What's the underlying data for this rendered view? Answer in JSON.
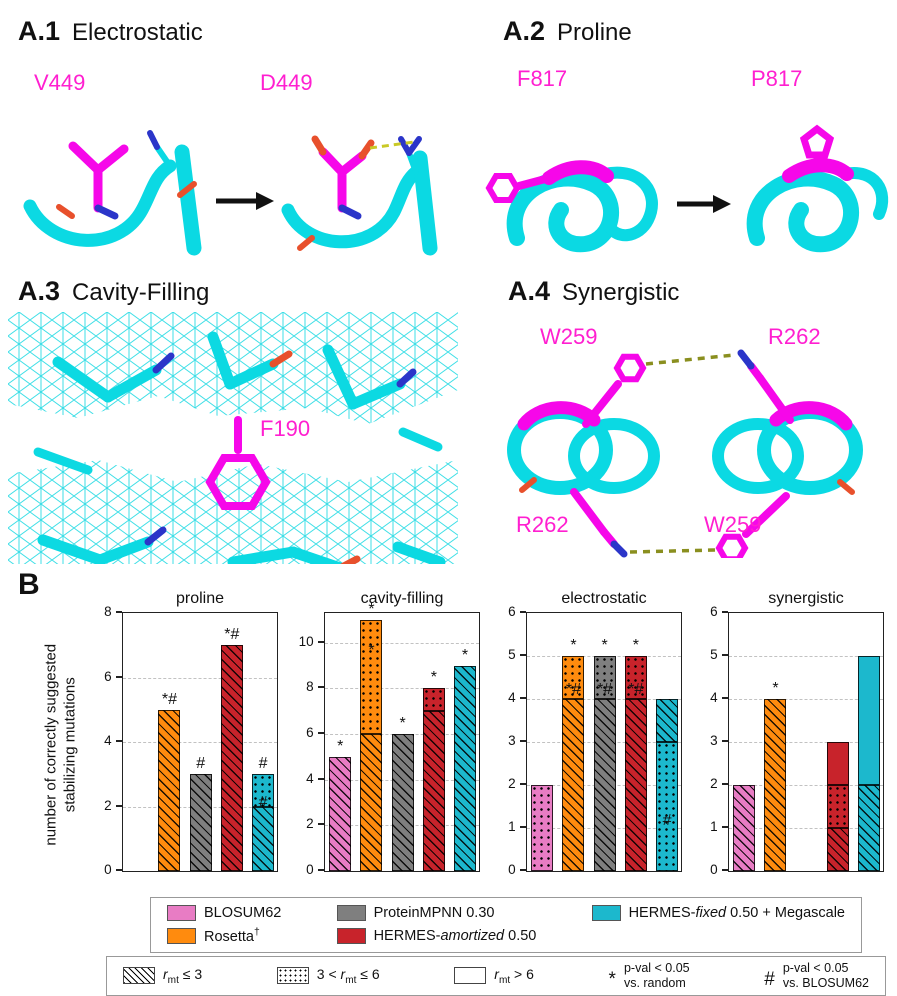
{
  "colors": {
    "blosum62": "#e87cc4",
    "rosetta": "#ff8b0e",
    "proteinmpnn": "#7f7f7f",
    "hermes_amortized": "#c8232b",
    "hermes_fixed": "#1cb8cd",
    "structure_cyan": "#0bd9e3",
    "structure_magenta": "#f607e9",
    "residue_label_magenta": "#ff1fd0",
    "nitrogen_blue": "#2b35c9",
    "oxygen_red": "#e8502c",
    "hbond_yellow": "#c9c926",
    "hbond_olive": "#8a8f1f"
  },
  "panels": {
    "a1": {
      "id": "A.1",
      "title": "Electrostatic",
      "label_left": "V449",
      "label_right": "D449"
    },
    "a2": {
      "id": "A.2",
      "title": "Proline",
      "label_left": "F817",
      "label_right": "P817"
    },
    "a3": {
      "id": "A.3",
      "title": "Cavity-Filling",
      "label": "F190"
    },
    "a4": {
      "id": "A.4",
      "title": "Synergistic",
      "label_tl": "W259",
      "label_tr": "R262",
      "label_bl": "R262",
      "label_br": "W259"
    },
    "b": {
      "id": "B"
    }
  },
  "chart_data": {
    "type": "bar",
    "ylabel_line1": "number of correctly suggested",
    "ylabel_line2": "stabilizing mutations",
    "legend_position": "below",
    "grid": "dashed-horizontal",
    "series_names": [
      "BLOSUM62",
      "Rosetta",
      "ProteinMPNN 0.30",
      "HERMES-amortized 0.50",
      "HERMES-fixed 0.50 + Megascale"
    ],
    "hatch_meaning": {
      "diag": "r_mt <= 3",
      "dot": "3 < r_mt <= 6",
      "none": "r_mt > 6"
    },
    "charts": [
      {
        "title": "proline",
        "ylim": [
          0,
          8
        ],
        "yticks": [
          0,
          2,
          4,
          6,
          8
        ],
        "bars": [
          {
            "series": "BLOSUM62",
            "color": "blosum62",
            "total": 0,
            "segments": [],
            "annotations": []
          },
          {
            "series": "Rosetta",
            "color": "rosetta",
            "total": 5,
            "segments": [
              {
                "to": 5,
                "hatch": "diag"
              }
            ],
            "annotations": [
              {
                "text": "*#",
                "y": 5,
                "place": "above"
              }
            ]
          },
          {
            "series": "ProteinMPNN 0.30",
            "color": "proteinmpnn",
            "total": 3,
            "segments": [
              {
                "to": 3,
                "hatch": "diag"
              }
            ],
            "annotations": [
              {
                "text": "#",
                "y": 3,
                "place": "above"
              }
            ]
          },
          {
            "series": "HERMES-amortized 0.50",
            "color": "hermes_amortized",
            "total": 7,
            "segments": [
              {
                "to": 7,
                "hatch": "diag"
              }
            ],
            "annotations": [
              {
                "text": "*#",
                "y": 7,
                "place": "above"
              }
            ]
          },
          {
            "series": "HERMES-fixed 0.50 + Megascale",
            "color": "hermes_fixed",
            "total": 3,
            "segments": [
              {
                "to": 2,
                "hatch": "diag"
              },
              {
                "to": 3,
                "hatch": "dot"
              }
            ],
            "annotations": [
              {
                "text": "#",
                "y": 3,
                "place": "above"
              },
              {
                "text": "#",
                "y": 2.3,
                "place": "inside"
              }
            ]
          }
        ]
      },
      {
        "title": "cavity-filling",
        "ylim": [
          0,
          11.3
        ],
        "yticks": [
          0,
          2,
          4,
          6,
          8,
          10
        ],
        "bars": [
          {
            "series": "BLOSUM62",
            "color": "blosum62",
            "total": 5,
            "segments": [
              {
                "to": 5,
                "hatch": "diag"
              }
            ],
            "annotations": [
              {
                "text": "*",
                "y": 5,
                "place": "above"
              }
            ]
          },
          {
            "series": "Rosetta",
            "color": "rosetta",
            "total": 11,
            "segments": [
              {
                "to": 6,
                "hatch": "diag"
              },
              {
                "to": 11,
                "hatch": "dot"
              }
            ],
            "annotations": [
              {
                "text": "*",
                "y": 11,
                "place": "above"
              },
              {
                "text": "*",
                "y": 9.9,
                "place": "inside"
              }
            ]
          },
          {
            "series": "ProteinMPNN 0.30",
            "color": "proteinmpnn",
            "total": 6,
            "segments": [
              {
                "to": 6,
                "hatch": "diag"
              }
            ],
            "annotations": [
              {
                "text": "*",
                "y": 6,
                "place": "above"
              }
            ]
          },
          {
            "series": "HERMES-amortized 0.50",
            "color": "hermes_amortized",
            "total": 8,
            "segments": [
              {
                "to": 7,
                "hatch": "diag"
              },
              {
                "to": 8,
                "hatch": "dot"
              }
            ],
            "annotations": [
              {
                "text": "*",
                "y": 8,
                "place": "above"
              }
            ]
          },
          {
            "series": "HERMES-fixed 0.50 + Megascale",
            "color": "hermes_fixed",
            "total": 9,
            "segments": [
              {
                "to": 9,
                "hatch": "diag"
              }
            ],
            "annotations": [
              {
                "text": "*",
                "y": 9,
                "place": "above"
              }
            ]
          }
        ]
      },
      {
        "title": "electrostatic",
        "ylim": [
          0,
          6
        ],
        "yticks": [
          0,
          1,
          2,
          3,
          4,
          5,
          6
        ],
        "bars": [
          {
            "series": "BLOSUM62",
            "color": "blosum62",
            "total": 2,
            "segments": [
              {
                "to": 2,
                "hatch": "dot"
              }
            ],
            "annotations": []
          },
          {
            "series": "Rosetta",
            "color": "rosetta",
            "total": 5,
            "segments": [
              {
                "to": 4,
                "hatch": "diag"
              },
              {
                "to": 5,
                "hatch": "dot"
              }
            ],
            "annotations": [
              {
                "text": "*",
                "y": 5,
                "place": "above"
              },
              {
                "text": "*#",
                "y": 4.35,
                "place": "inside"
              }
            ]
          },
          {
            "series": "ProteinMPNN 0.30",
            "color": "proteinmpnn",
            "total": 5,
            "segments": [
              {
                "to": 4,
                "hatch": "diag"
              },
              {
                "to": 5,
                "hatch": "dot"
              }
            ],
            "annotations": [
              {
                "text": "*",
                "y": 5,
                "place": "above"
              },
              {
                "text": "*#",
                "y": 4.35,
                "place": "inside"
              }
            ]
          },
          {
            "series": "HERMES-amortized 0.50",
            "color": "hermes_amortized",
            "total": 5,
            "segments": [
              {
                "to": 4,
                "hatch": "diag"
              },
              {
                "to": 5,
                "hatch": "dot"
              }
            ],
            "annotations": [
              {
                "text": "*",
                "y": 5,
                "place": "above"
              },
              {
                "text": "*#",
                "y": 4.35,
                "place": "inside"
              }
            ]
          },
          {
            "series": "HERMES-fixed 0.50 + Megascale",
            "color": "hermes_fixed",
            "total": 4,
            "segments": [
              {
                "to": 3,
                "hatch": "dot"
              },
              {
                "to": 4,
                "hatch": "diag"
              }
            ],
            "annotations": [
              {
                "text": "#",
                "y": 1.3,
                "place": "inside"
              }
            ]
          }
        ]
      },
      {
        "title": "synergistic",
        "ylim": [
          0,
          6
        ],
        "yticks": [
          0,
          1,
          2,
          3,
          4,
          5,
          6
        ],
        "bars": [
          {
            "series": "BLOSUM62",
            "color": "blosum62",
            "total": 2,
            "segments": [
              {
                "to": 2,
                "hatch": "diag"
              }
            ],
            "annotations": []
          },
          {
            "series": "Rosetta",
            "color": "rosetta",
            "total": 4,
            "segments": [
              {
                "to": 4,
                "hatch": "diag"
              }
            ],
            "annotations": [
              {
                "text": "*",
                "y": 4,
                "place": "above"
              }
            ]
          },
          {
            "series": "ProteinMPNN 0.30",
            "color": "proteinmpnn",
            "total": 0,
            "segments": [],
            "annotations": []
          },
          {
            "series": "HERMES-amortized 0.50",
            "color": "hermes_amortized",
            "total": 3,
            "segments": [
              {
                "to": 1,
                "hatch": "diag"
              },
              {
                "to": 2,
                "hatch": "dot"
              },
              {
                "to": 3,
                "hatch": "none"
              }
            ],
            "annotations": []
          },
          {
            "series": "HERMES-fixed 0.50 + Megascale",
            "color": "hermes_fixed",
            "total": 5,
            "segments": [
              {
                "to": 2,
                "hatch": "diag"
              },
              {
                "to": 5,
                "hatch": "none"
              }
            ],
            "annotations": []
          }
        ]
      }
    ]
  },
  "legend": {
    "items": [
      {
        "swatch": "blosum62",
        "parts": [
          {
            "t": "BLOSUM62"
          }
        ]
      },
      {
        "swatch": "rosetta",
        "parts": [
          {
            "t": "Rosetta"
          },
          {
            "t": "†",
            "style": "sup"
          }
        ]
      },
      {
        "swatch": "proteinmpnn",
        "parts": [
          {
            "t": "ProteinMPNN 0.30"
          }
        ]
      },
      {
        "swatch": "hermes_amortized",
        "parts": [
          {
            "t": "HERMES-"
          },
          {
            "t": "amortized",
            "style": "i"
          },
          {
            "t": " 0.50"
          }
        ]
      },
      {
        "swatch": "hermes_fixed",
        "parts": [
          {
            "t": "HERMES-"
          },
          {
            "t": "fixed",
            "style": "i"
          },
          {
            "t": " 0.50 + Megascale"
          }
        ]
      }
    ]
  },
  "hatch_legend": {
    "items": [
      {
        "hatch": "diag",
        "parts": [
          {
            "t": "r",
            "style": "i"
          },
          {
            "t": "mt",
            "style": "sub"
          },
          {
            "t": " ≤ 3"
          }
        ]
      },
      {
        "hatch": "dot",
        "parts": [
          {
            "t": "3 < "
          },
          {
            "t": "r",
            "style": "i"
          },
          {
            "t": "mt",
            "style": "sub"
          },
          {
            "t": " ≤ 6"
          }
        ]
      },
      {
        "hatch": "none",
        "parts": [
          {
            "t": "r",
            "style": "i"
          },
          {
            "t": "mt",
            "style": "sub"
          },
          {
            "t": " > 6"
          }
        ]
      },
      {
        "symbol": "*",
        "line1": "p-val < 0.05",
        "line2": "vs. random"
      },
      {
        "symbol": "#",
        "line1": "p-val < 0.05",
        "line2": "vs. BLOSUM62"
      }
    ]
  }
}
